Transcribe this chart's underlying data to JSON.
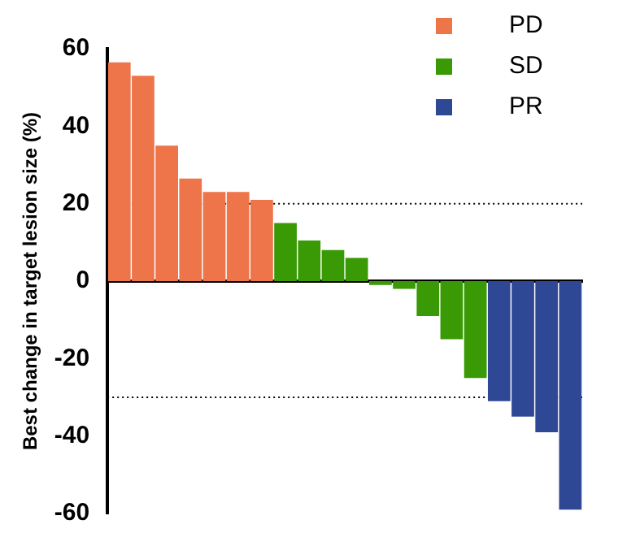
{
  "chart_data": {
    "type": "bar",
    "ylabel": "Best change in target lesion size (%)",
    "categories": [
      null,
      null,
      null,
      null,
      null,
      null,
      null,
      null,
      null,
      null,
      null,
      null,
      null,
      null,
      null,
      null,
      null,
      null,
      null,
      null
    ],
    "series": [
      {
        "name": "PD",
        "color": "#ee7449",
        "values": [
          56.5,
          53,
          35,
          26.5,
          23,
          23,
          21,
          null,
          null,
          null,
          null,
          null,
          null,
          null,
          null,
          null,
          null,
          null,
          null,
          null
        ]
      },
      {
        "name": "SD",
        "color": "#3a9a06",
        "values": [
          null,
          null,
          null,
          null,
          null,
          null,
          null,
          15,
          10.5,
          8,
          6,
          -1,
          -2,
          -9,
          -15,
          -25,
          null,
          null,
          null,
          null
        ]
      },
      {
        "name": "PR",
        "color": "#2f4896",
        "values": [
          null,
          null,
          null,
          null,
          null,
          null,
          null,
          null,
          null,
          null,
          null,
          null,
          null,
          null,
          null,
          null,
          -31,
          -35,
          -39,
          -59
        ]
      }
    ],
    "ylim": [
      -60,
      60
    ],
    "yticks": [
      -60,
      -40,
      -20,
      0,
      20,
      40,
      60
    ],
    "ref_lines": [
      {
        "axis": "y",
        "value": 20,
        "line_style": "dotted"
      },
      {
        "axis": "y",
        "value": -30,
        "line_style": "dotted"
      }
    ],
    "grid": false,
    "legend": "top right",
    "tick_labels": "y"
  }
}
